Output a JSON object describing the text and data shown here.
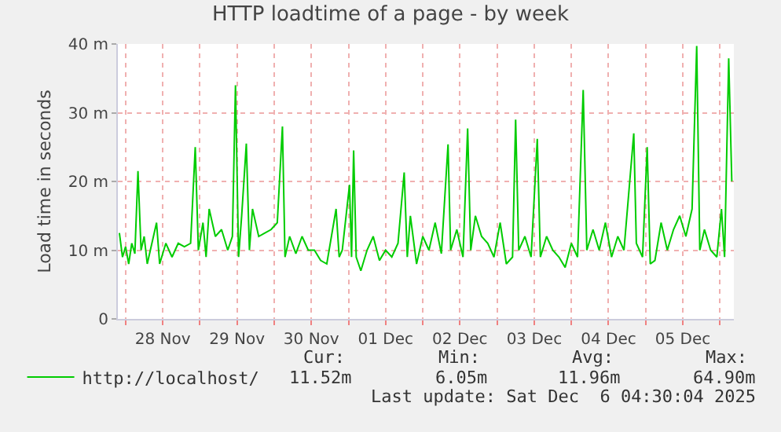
{
  "chart_data": {
    "type": "line",
    "title": "HTTP loadtime of a page - by week",
    "ylabel": "Load time in seconds",
    "x": [
      "2025-11-27T22:00",
      "2025-11-27T23:00",
      "2025-11-28T00:00",
      "2025-11-28T01:00",
      "2025-11-28T02:00",
      "2025-11-28T03:00",
      "2025-11-28T04:00",
      "2025-11-28T05:00",
      "2025-11-28T06:00",
      "2025-11-28T07:00",
      "2025-11-28T08:00",
      "2025-11-28T10:00",
      "2025-11-28T11:00",
      "2025-11-28T13:00",
      "2025-11-28T15:00",
      "2025-11-28T17:00",
      "2025-11-28T19:00",
      "2025-11-28T21:00",
      "2025-11-28T22:30",
      "2025-11-28T23:30",
      "2025-11-29T01:00",
      "2025-11-29T02:00",
      "2025-11-29T03:00",
      "2025-11-29T05:00",
      "2025-11-29T07:00",
      "2025-11-29T09:00",
      "2025-11-29T10:30",
      "2025-11-29T11:30",
      "2025-11-29T12:30",
      "2025-11-29T13:30",
      "2025-11-29T15:00",
      "2025-11-29T16:00",
      "2025-11-29T17:00",
      "2025-11-29T19:00",
      "2025-11-29T21:00",
      "2025-11-29T23:00",
      "2025-11-30T01:00",
      "2025-11-30T02:40",
      "2025-11-30T03:30",
      "2025-11-30T05:00",
      "2025-11-30T07:00",
      "2025-11-30T09:00",
      "2025-11-30T11:00",
      "2025-11-30T13:00",
      "2025-11-30T15:00",
      "2025-11-30T17:00",
      "2025-11-30T20:00",
      "2025-11-30T21:00",
      "2025-11-30T22:00",
      "2025-12-01T00:20",
      "2025-12-01T01:00",
      "2025-12-01T01:40",
      "2025-12-01T02:30",
      "2025-12-01T04:00",
      "2025-12-01T06:00",
      "2025-12-01T08:00",
      "2025-12-01T10:00",
      "2025-12-01T12:00",
      "2025-12-01T14:00",
      "2025-12-01T16:00",
      "2025-12-01T18:00",
      "2025-12-01T19:00",
      "2025-12-01T20:00",
      "2025-12-01T22:00",
      "2025-12-02T00:00",
      "2025-12-02T02:00",
      "2025-12-02T04:00",
      "2025-12-02T06:00",
      "2025-12-02T08:10",
      "2025-12-02T09:00",
      "2025-12-02T11:00",
      "2025-12-02T13:00",
      "2025-12-02T14:30",
      "2025-12-02T15:30",
      "2025-12-02T17:00",
      "2025-12-02T19:00",
      "2025-12-02T21:00",
      "2025-12-02T23:00",
      "2025-12-03T01:00",
      "2025-12-03T03:00",
      "2025-12-03T05:00",
      "2025-12-03T06:00",
      "2025-12-03T07:00",
      "2025-12-03T09:00",
      "2025-12-03T11:00",
      "2025-12-03T13:00",
      "2025-12-03T14:00",
      "2025-12-03T16:00",
      "2025-12-03T18:00",
      "2025-12-03T20:00",
      "2025-12-03T22:00",
      "2025-12-04T00:00",
      "2025-12-04T02:00",
      "2025-12-04T03:50",
      "2025-12-04T05:00",
      "2025-12-04T07:00",
      "2025-12-04T09:00",
      "2025-12-04T11:00",
      "2025-12-04T13:00",
      "2025-12-04T15:00",
      "2025-12-04T17:00",
      "2025-12-04T20:10",
      "2025-12-04T21:00",
      "2025-12-04T23:00",
      "2025-12-05T00:30",
      "2025-12-05T01:30",
      "2025-12-05T03:00",
      "2025-12-05T05:00",
      "2025-12-05T07:00",
      "2025-12-05T09:00",
      "2025-12-05T11:00",
      "2025-12-05T13:00",
      "2025-12-05T15:00",
      "2025-12-05T16:30",
      "2025-12-05T17:30",
      "2025-12-05T19:00",
      "2025-12-05T21:00",
      "2025-12-05T23:00",
      "2025-12-06T00:30",
      "2025-12-06T01:30",
      "2025-12-06T02:50",
      "2025-12-06T03:50"
    ],
    "series": [
      {
        "name": "http://localhost/",
        "color": "#00cc00",
        "values": [
          12.5,
          9,
          10.5,
          8,
          11,
          9.5,
          21.5,
          10,
          12,
          8,
          10,
          14,
          8,
          11,
          9,
          11,
          10.5,
          11,
          25,
          10,
          14,
          9,
          16,
          12,
          13,
          10,
          12,
          34,
          9,
          15,
          25.5,
          10,
          16,
          12,
          12.5,
          13,
          14,
          28,
          9,
          12,
          9.5,
          12,
          10,
          10,
          8.5,
          8,
          16,
          9,
          10,
          19.5,
          9,
          24.5,
          9,
          7,
          10,
          12,
          8.5,
          10,
          9,
          11,
          21.3,
          9,
          15,
          8,
          12,
          10,
          14,
          9.5,
          25.4,
          10,
          13,
          9,
          27.7,
          10,
          15,
          12,
          11,
          9,
          14,
          8,
          9,
          29,
          10,
          12,
          9,
          26.2,
          9,
          12,
          10,
          9,
          7.5,
          11,
          9,
          33.3,
          10,
          13,
          10,
          14,
          9,
          12,
          10,
          27,
          11,
          9,
          25,
          8,
          8.5,
          14,
          10,
          13,
          15,
          12,
          16,
          39.7,
          10,
          13,
          10,
          9,
          16,
          9,
          37.9,
          20
        ]
      }
    ],
    "xlim": [
      "2025-11-27T21:30",
      "2025-12-06T04:30"
    ],
    "xticks": [
      {
        "value": "2025-11-28T00:00",
        "label": null
      },
      {
        "value": "2025-11-28T12:00",
        "label": "28 Nov"
      },
      {
        "value": "2025-11-29T00:00",
        "label": null
      },
      {
        "value": "2025-11-29T12:00",
        "label": "29 Nov"
      },
      {
        "value": "2025-11-30T00:00",
        "label": null
      },
      {
        "value": "2025-11-30T12:00",
        "label": "30 Nov"
      },
      {
        "value": "2025-12-01T00:00",
        "label": null
      },
      {
        "value": "2025-12-01T12:00",
        "label": "01 Dec"
      },
      {
        "value": "2025-12-02T00:00",
        "label": null
      },
      {
        "value": "2025-12-02T12:00",
        "label": "02 Dec"
      },
      {
        "value": "2025-12-03T00:00",
        "label": null
      },
      {
        "value": "2025-12-03T12:00",
        "label": "03 Dec"
      },
      {
        "value": "2025-12-04T00:00",
        "label": null
      },
      {
        "value": "2025-12-04T12:00",
        "label": "04 Dec"
      },
      {
        "value": "2025-12-05T00:00",
        "label": null
      },
      {
        "value": "2025-12-05T12:00",
        "label": "05 Dec"
      },
      {
        "value": "2025-12-06T00:00",
        "label": null
      }
    ],
    "ylim": [
      0,
      40
    ],
    "yticks": [
      0,
      {
        "value": 10,
        "label": "10 m"
      },
      {
        "value": 20,
        "label": "20 m"
      },
      {
        "value": 30,
        "label": "30 m"
      },
      {
        "value": 40,
        "label": "40 m"
      }
    ],
    "grid": true,
    "legend": "bottom left",
    "marker": "none",
    "line_style": "solid",
    "annotations": [
      "Cur:",
      "11.52m",
      "Min:",
      "6.05m",
      "Avg:",
      "11.96m",
      "Max:",
      "64.90m",
      "Last update: Sat Dec  6 04:30:04 2025"
    ]
  }
}
